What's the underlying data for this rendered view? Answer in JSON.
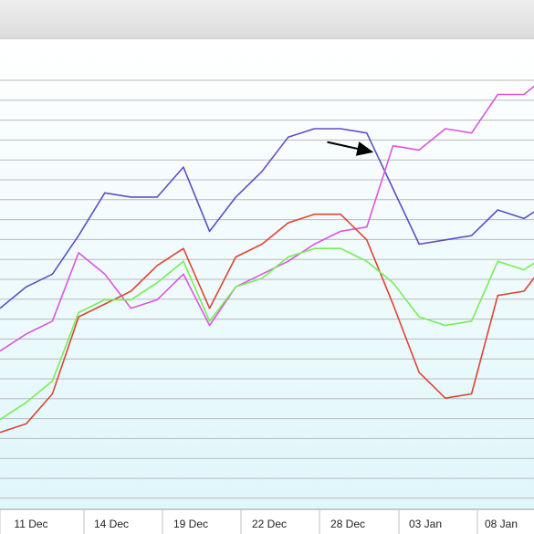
{
  "chart_data": {
    "type": "line",
    "title": "",
    "xlabel": "",
    "ylabel": "",
    "x_labels": [
      "11 Dec",
      "14 Dec",
      "19 Dec",
      "22 Dec",
      "28 Dec",
      "03 Jan",
      "08 Jan"
    ],
    "grid": true,
    "legend": "none",
    "ylim": [
      0,
      10.5
    ],
    "background_gradient": [
      "#ffffff",
      "#dff6fa"
    ],
    "series": [
      {
        "color": "#5b4fc4",
        "values": [
          4.7,
          5.2,
          5.5,
          6.4,
          7.4,
          7.3,
          7.3,
          8.0,
          6.5,
          7.3,
          7.9,
          8.7,
          8.9,
          8.9,
          8.8,
          7.5,
          6.2,
          6.3,
          6.4,
          7.0,
          6.8,
          7.2
        ]
      },
      {
        "color": "#dd55dd",
        "values": [
          3.7,
          4.1,
          4.4,
          6.0,
          5.5,
          4.7,
          4.9,
          5.5,
          4.3,
          5.2,
          5.5,
          5.8,
          6.2,
          6.5,
          6.6,
          8.5,
          8.4,
          8.9,
          8.8,
          9.7,
          9.7,
          10.2
        ]
      },
      {
        "color": "#dd4433",
        "values": [
          1.8,
          2.0,
          2.7,
          4.5,
          4.8,
          5.1,
          5.7,
          6.1,
          4.7,
          5.9,
          6.2,
          6.7,
          6.9,
          6.9,
          6.3,
          4.8,
          3.2,
          2.6,
          2.7,
          5.0,
          5.1,
          5.9
        ]
      },
      {
        "color": "#77ee55",
        "values": [
          2.1,
          2.5,
          3.0,
          4.6,
          4.9,
          4.9,
          5.3,
          5.8,
          4.4,
          5.2,
          5.4,
          5.9,
          6.1,
          6.1,
          5.8,
          5.3,
          4.5,
          4.3,
          4.4,
          5.8,
          5.6,
          6.0
        ]
      }
    ],
    "annotations": [
      {
        "type": "arrow",
        "color": "#000000",
        "from": [
          15.0,
          8.8
        ],
        "to": [
          16.0,
          8.7
        ]
      }
    ]
  }
}
